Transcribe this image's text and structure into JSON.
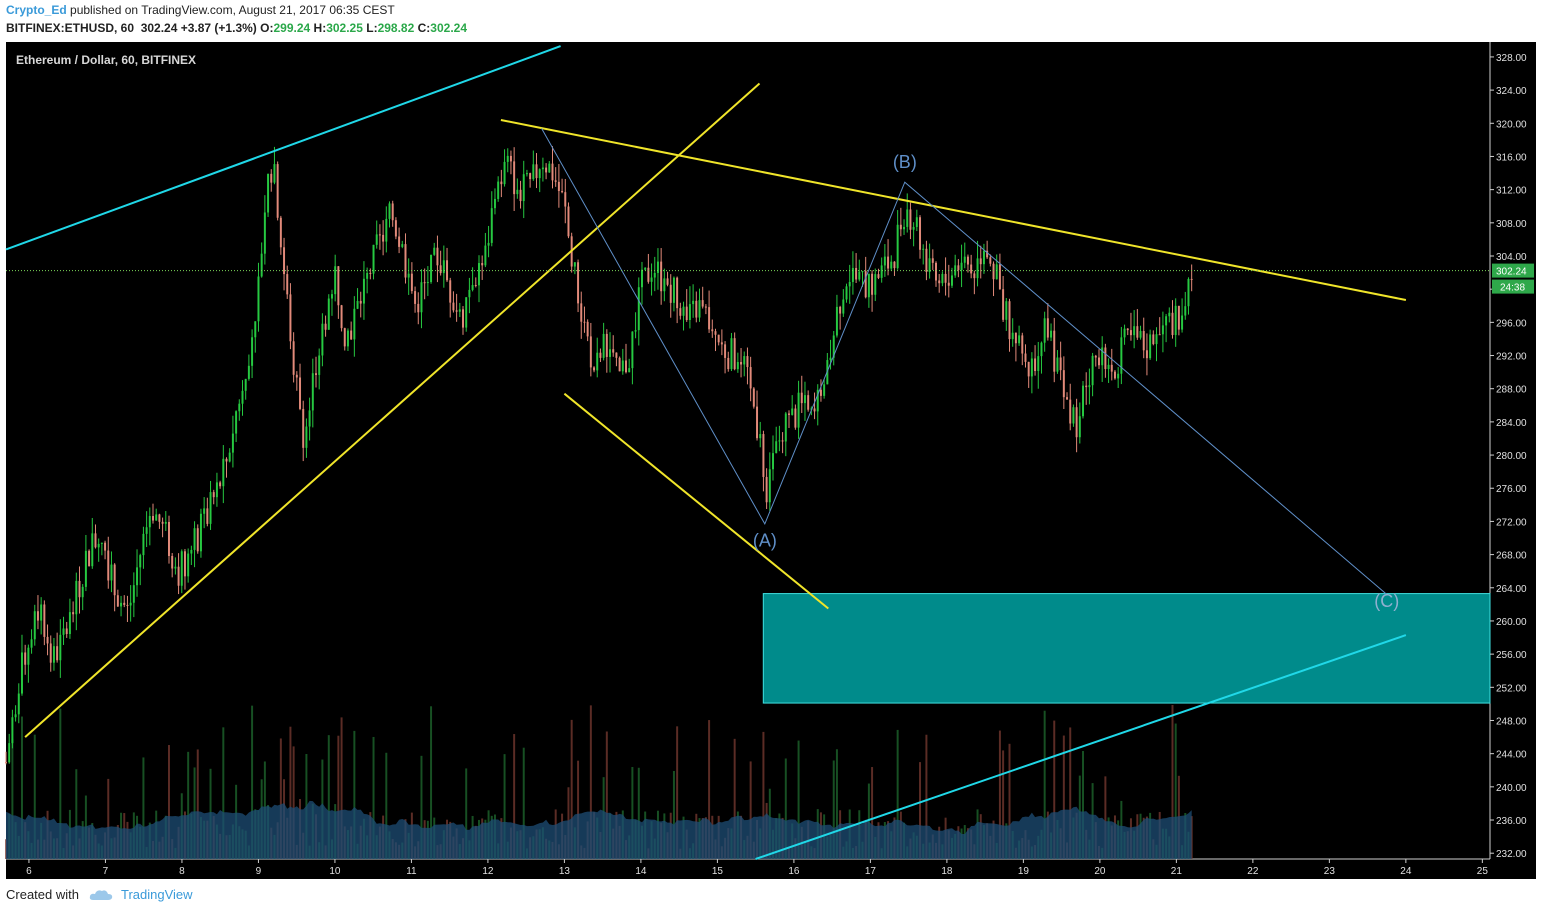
{
  "header": {
    "author": "Crypto_Ed",
    "published_text": "published on TradingView.com, August 21, 2017 06:35 CEST",
    "symbol_line": "BITFINEX:ETHUSD, 60",
    "last": "302.24",
    "change": "+3.87 (+1.3%)",
    "o_label": "O:",
    "o_value": "299.24",
    "h_label": "H:",
    "h_value": "302.25",
    "l_label": "L:",
    "l_value": "298.82",
    "c_label": "C:",
    "c_value": "302.24"
  },
  "chart_title": "Ethereum / Dollar, 60, BITFINEX",
  "footer": {
    "created_with": "Created with",
    "brand": "TradingView"
  },
  "colors": {
    "background": "#000000",
    "candle_up": "#26c941",
    "candle_down": "#e28a7a",
    "trend_yellow": "#f0e52a",
    "channel_cyan": "#20d8e8",
    "wave_blue": "#5f8fc8",
    "target_zone": "#008b8b",
    "volume_area": "#1d4e75",
    "price_line": "#7bd65a"
  },
  "chart_data": {
    "type": "candlestick",
    "x_axis": {
      "ticks": [
        "6",
        "7",
        "8",
        "9",
        "10",
        "11",
        "12",
        "13",
        "14",
        "15",
        "16",
        "17",
        "18",
        "19",
        "20",
        "21",
        "22",
        "23",
        "24",
        "25"
      ],
      "range": [
        5.7,
        25.1
      ]
    },
    "y_axis": {
      "ticks": [
        "232.00",
        "236.00",
        "240.00",
        "244.00",
        "248.00",
        "252.00",
        "256.00",
        "260.00",
        "264.00",
        "268.00",
        "272.00",
        "276.00",
        "280.00",
        "284.00",
        "288.00",
        "292.00",
        "296.00",
        "300.00",
        "304.00",
        "308.00",
        "312.00",
        "316.00",
        "320.00",
        "324.00",
        "328.00"
      ],
      "range": [
        231.3,
        329.8
      ]
    },
    "last_price": {
      "label": "302.24",
      "value": 302.24
    },
    "countdown_label": "24:38",
    "grid": false,
    "price_path": [
      [
        5.7,
        243
      ],
      [
        5.85,
        252
      ],
      [
        6.0,
        258
      ],
      [
        6.15,
        262
      ],
      [
        6.3,
        255
      ],
      [
        6.45,
        258
      ],
      [
        6.6,
        262
      ],
      [
        6.75,
        268
      ],
      [
        6.95,
        271
      ],
      [
        7.1,
        264
      ],
      [
        7.3,
        261
      ],
      [
        7.45,
        268
      ],
      [
        7.6,
        274
      ],
      [
        7.8,
        270
      ],
      [
        7.95,
        266
      ],
      [
        8.15,
        269
      ],
      [
        8.35,
        273
      ],
      [
        8.55,
        278
      ],
      [
        8.75,
        287
      ],
      [
        8.9,
        294
      ],
      [
        9.0,
        300
      ],
      [
        9.1,
        312
      ],
      [
        9.2,
        316
      ],
      [
        9.3,
        305
      ],
      [
        9.45,
        292
      ],
      [
        9.6,
        282
      ],
      [
        9.75,
        290
      ],
      [
        9.9,
        298
      ],
      [
        10.0,
        302
      ],
      [
        10.15,
        294
      ],
      [
        10.3,
        298
      ],
      [
        10.45,
        302
      ],
      [
        10.6,
        306
      ],
      [
        10.75,
        309
      ],
      [
        10.9,
        304
      ],
      [
        11.05,
        298
      ],
      [
        11.2,
        301
      ],
      [
        11.35,
        304
      ],
      [
        11.5,
        300
      ],
      [
        11.65,
        296
      ],
      [
        11.8,
        302
      ],
      [
        11.95,
        303
      ],
      [
        12.1,
        312
      ],
      [
        12.25,
        315
      ],
      [
        12.4,
        312
      ],
      [
        12.55,
        312
      ],
      [
        12.7,
        316
      ],
      [
        12.85,
        314
      ],
      [
        13.0,
        310
      ],
      [
        13.1,
        303
      ],
      [
        13.25,
        296
      ],
      [
        13.4,
        290
      ],
      [
        13.55,
        294
      ],
      [
        13.7,
        289
      ],
      [
        13.85,
        292
      ],
      [
        14.0,
        300
      ],
      [
        14.15,
        303
      ],
      [
        14.3,
        301
      ],
      [
        14.45,
        300
      ],
      [
        14.6,
        296
      ],
      [
        14.75,
        298
      ],
      [
        14.9,
        296
      ],
      [
        15.05,
        293
      ],
      [
        15.2,
        292
      ],
      [
        15.35,
        290
      ],
      [
        15.5,
        285
      ],
      [
        15.65,
        276
      ],
      [
        15.8,
        282
      ],
      [
        15.95,
        284
      ],
      [
        16.1,
        286
      ],
      [
        16.25,
        284
      ],
      [
        16.4,
        290
      ],
      [
        16.55,
        297
      ],
      [
        16.7,
        302
      ],
      [
        16.85,
        301
      ],
      [
        17.0,
        300
      ],
      [
        17.15,
        302
      ],
      [
        17.3,
        304
      ],
      [
        17.45,
        310
      ],
      [
        17.6,
        308
      ],
      [
        17.75,
        302
      ],
      [
        17.9,
        300
      ],
      [
        18.05,
        302
      ],
      [
        18.2,
        304
      ],
      [
        18.35,
        302
      ],
      [
        18.5,
        306
      ],
      [
        18.65,
        301
      ],
      [
        18.8,
        296
      ],
      [
        18.95,
        293
      ],
      [
        19.1,
        290
      ],
      [
        19.25,
        296
      ],
      [
        19.4,
        292
      ],
      [
        19.55,
        286
      ],
      [
        19.7,
        284
      ],
      [
        19.85,
        290
      ],
      [
        20.0,
        292
      ],
      [
        20.15,
        290
      ],
      [
        20.3,
        293
      ],
      [
        20.45,
        294
      ],
      [
        20.6,
        293
      ],
      [
        20.75,
        294
      ],
      [
        20.9,
        296
      ],
      [
        21.05,
        297
      ],
      [
        21.2,
        302
      ]
    ],
    "drawings": [
      {
        "kind": "trendline",
        "color": "trend_yellow",
        "points": [
          [
            5.95,
            246
          ],
          [
            15.55,
            324.8
          ]
        ]
      },
      {
        "kind": "trendline",
        "color": "trend_yellow",
        "points": [
          [
            12.17,
            320.4
          ],
          [
            24.0,
            298.7
          ]
        ]
      },
      {
        "kind": "trendline",
        "color": "trend_yellow",
        "points": [
          [
            13.0,
            287.4
          ],
          [
            16.45,
            261.5
          ]
        ]
      },
      {
        "kind": "trendline",
        "color": "channel_cyan",
        "points": [
          [
            5.7,
            304.8
          ],
          [
            12.95,
            329.3
          ]
        ]
      },
      {
        "kind": "trendline",
        "color": "channel_cyan",
        "points": [
          [
            15.5,
            231.3
          ],
          [
            24.0,
            258.3
          ]
        ]
      },
      {
        "kind": "wave",
        "color": "wave_blue",
        "points": [
          [
            12.7,
            319.4
          ],
          [
            15.62,
            271.7
          ],
          [
            17.45,
            312.9
          ],
          [
            23.75,
            263.2
          ]
        ]
      },
      {
        "kind": "zone",
        "color": "target_zone",
        "x": [
          15.6,
          25.1
        ],
        "y": [
          250.1,
          263.3
        ]
      }
    ],
    "wave_labels": [
      {
        "text": "(A)",
        "x": 15.62,
        "y": 269.0
      },
      {
        "text": "(B)",
        "x": 17.45,
        "y": 314.6
      },
      {
        "text": "(C)",
        "x": 23.75,
        "y": 261.7
      }
    ]
  }
}
